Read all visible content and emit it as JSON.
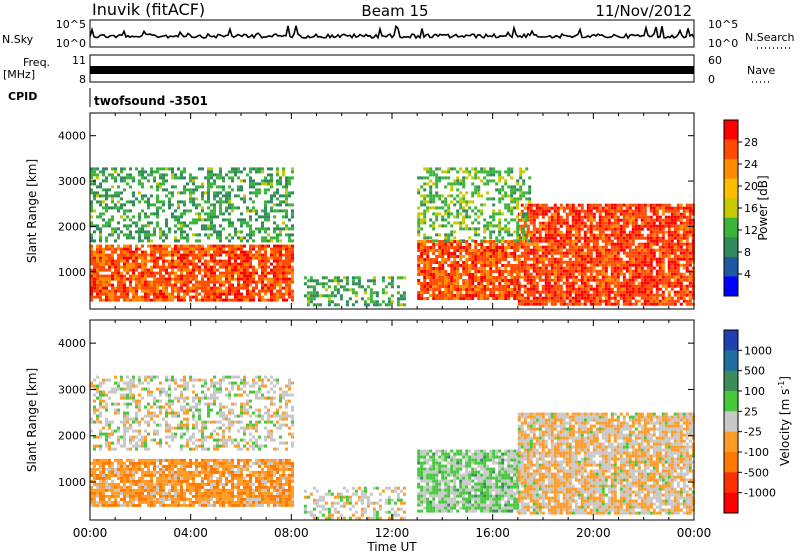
{
  "header": {
    "station": "Inuvik (fitACF)",
    "beam": "Beam 15",
    "date": "11/Nov/2012"
  },
  "sky_panel": {
    "left_label": "N.Sky",
    "left_ticks": [
      "10^5",
      "10^0"
    ],
    "right_label": "N.Search",
    "right_ticks": [
      "10^5",
      "10^0"
    ]
  },
  "freq_panel": {
    "left_label_line1": "Freq.",
    "left_label_line2": "[MHz]",
    "left_ticks": [
      "11",
      "8"
    ],
    "right_label": "Nave",
    "right_ticks": [
      "60",
      "0"
    ]
  },
  "cpid": {
    "label": "CPID",
    "value": "twofsound -3501"
  },
  "colorbars": {
    "power": {
      "label": "Power [dB]",
      "ticks": [
        "28",
        "24",
        "20",
        "16",
        "12",
        "8",
        "4"
      ],
      "colors": [
        "#ff0000",
        "#ff4a00",
        "#ff8c00",
        "#ffbe00",
        "#c8c800",
        "#3cb43c",
        "#2f8a5c",
        "#1e5aa0",
        "#0000ff"
      ]
    },
    "velocity": {
      "label": "Velocity [m s",
      "label_sup": "-1",
      "label_end": "]",
      "ticks": [
        "1000",
        "500",
        "100",
        "25",
        "-25",
        "-100",
        "-500",
        "-1000"
      ],
      "colors": [
        "#2040b0",
        "#1f6fa0",
        "#3c8c5a",
        "#46c83c",
        "#c8c8c8",
        "#ff9c28",
        "#ff7800",
        "#ff3000",
        "#ff0000"
      ]
    }
  },
  "axes": {
    "ylabel": "Slant Range [km]",
    "xlabel": "Time UT",
    "xticks": [
      "00:00",
      "04:00",
      "08:00",
      "12:00",
      "16:00",
      "20:00",
      "00:00"
    ],
    "yticks": [
      "1000",
      "2000",
      "3000",
      "4000"
    ]
  },
  "chart_data": {
    "type": "heatmap",
    "title": "Inuvik (fitACF) Beam 15 11/Nov/2012",
    "xlabel": "Time UT",
    "ylabel": "Slant Range [km]",
    "xlim_hours": [
      0,
      24
    ],
    "ylim_km": [
      180,
      4500
    ],
    "panels": [
      {
        "name": "Power",
        "units": "dB",
        "colorbar_range": [
          0,
          30
        ],
        "regions": [
          {
            "t_start": 0.0,
            "t_end": 8.0,
            "r_min": 400,
            "r_max": 1600,
            "value": 26
          },
          {
            "t_start": 8.5,
            "t_end": 12.5,
            "r_min": 250,
            "r_max": 900,
            "value": 10
          },
          {
            "t_start": 13.0,
            "t_end": 17.0,
            "r_min": 400,
            "r_max": 1700,
            "value": 26
          },
          {
            "t_start": 17.0,
            "t_end": 24.0,
            "r_min": 300,
            "r_max": 2500,
            "value": 27
          },
          {
            "t_start": 0.0,
            "t_end": 8.0,
            "r_min": 1700,
            "r_max": 3300,
            "value": 10
          },
          {
            "t_start": 13.0,
            "t_end": 17.5,
            "r_min": 1700,
            "r_max": 3300,
            "value": 12
          }
        ]
      },
      {
        "name": "Velocity",
        "units": "m s^-1",
        "colorbar_range": [
          -1000,
          1000
        ],
        "regions": [
          {
            "t_start": 0.0,
            "t_end": 8.0,
            "r_min": 500,
            "r_max": 1500,
            "value": -300
          },
          {
            "t_start": 8.5,
            "t_end": 12.5,
            "r_min": 250,
            "r_max": 900,
            "value": 0
          },
          {
            "t_start": 13.0,
            "t_end": 17.0,
            "r_min": 400,
            "r_max": 1700,
            "value": 150
          },
          {
            "t_start": 17.0,
            "t_end": 24.0,
            "r_min": 300,
            "r_max": 2500,
            "value": -100
          },
          {
            "t_start": 0.0,
            "t_end": 8.0,
            "r_min": 1700,
            "r_max": 3300,
            "value": 0
          }
        ]
      }
    ],
    "grid": false
  }
}
